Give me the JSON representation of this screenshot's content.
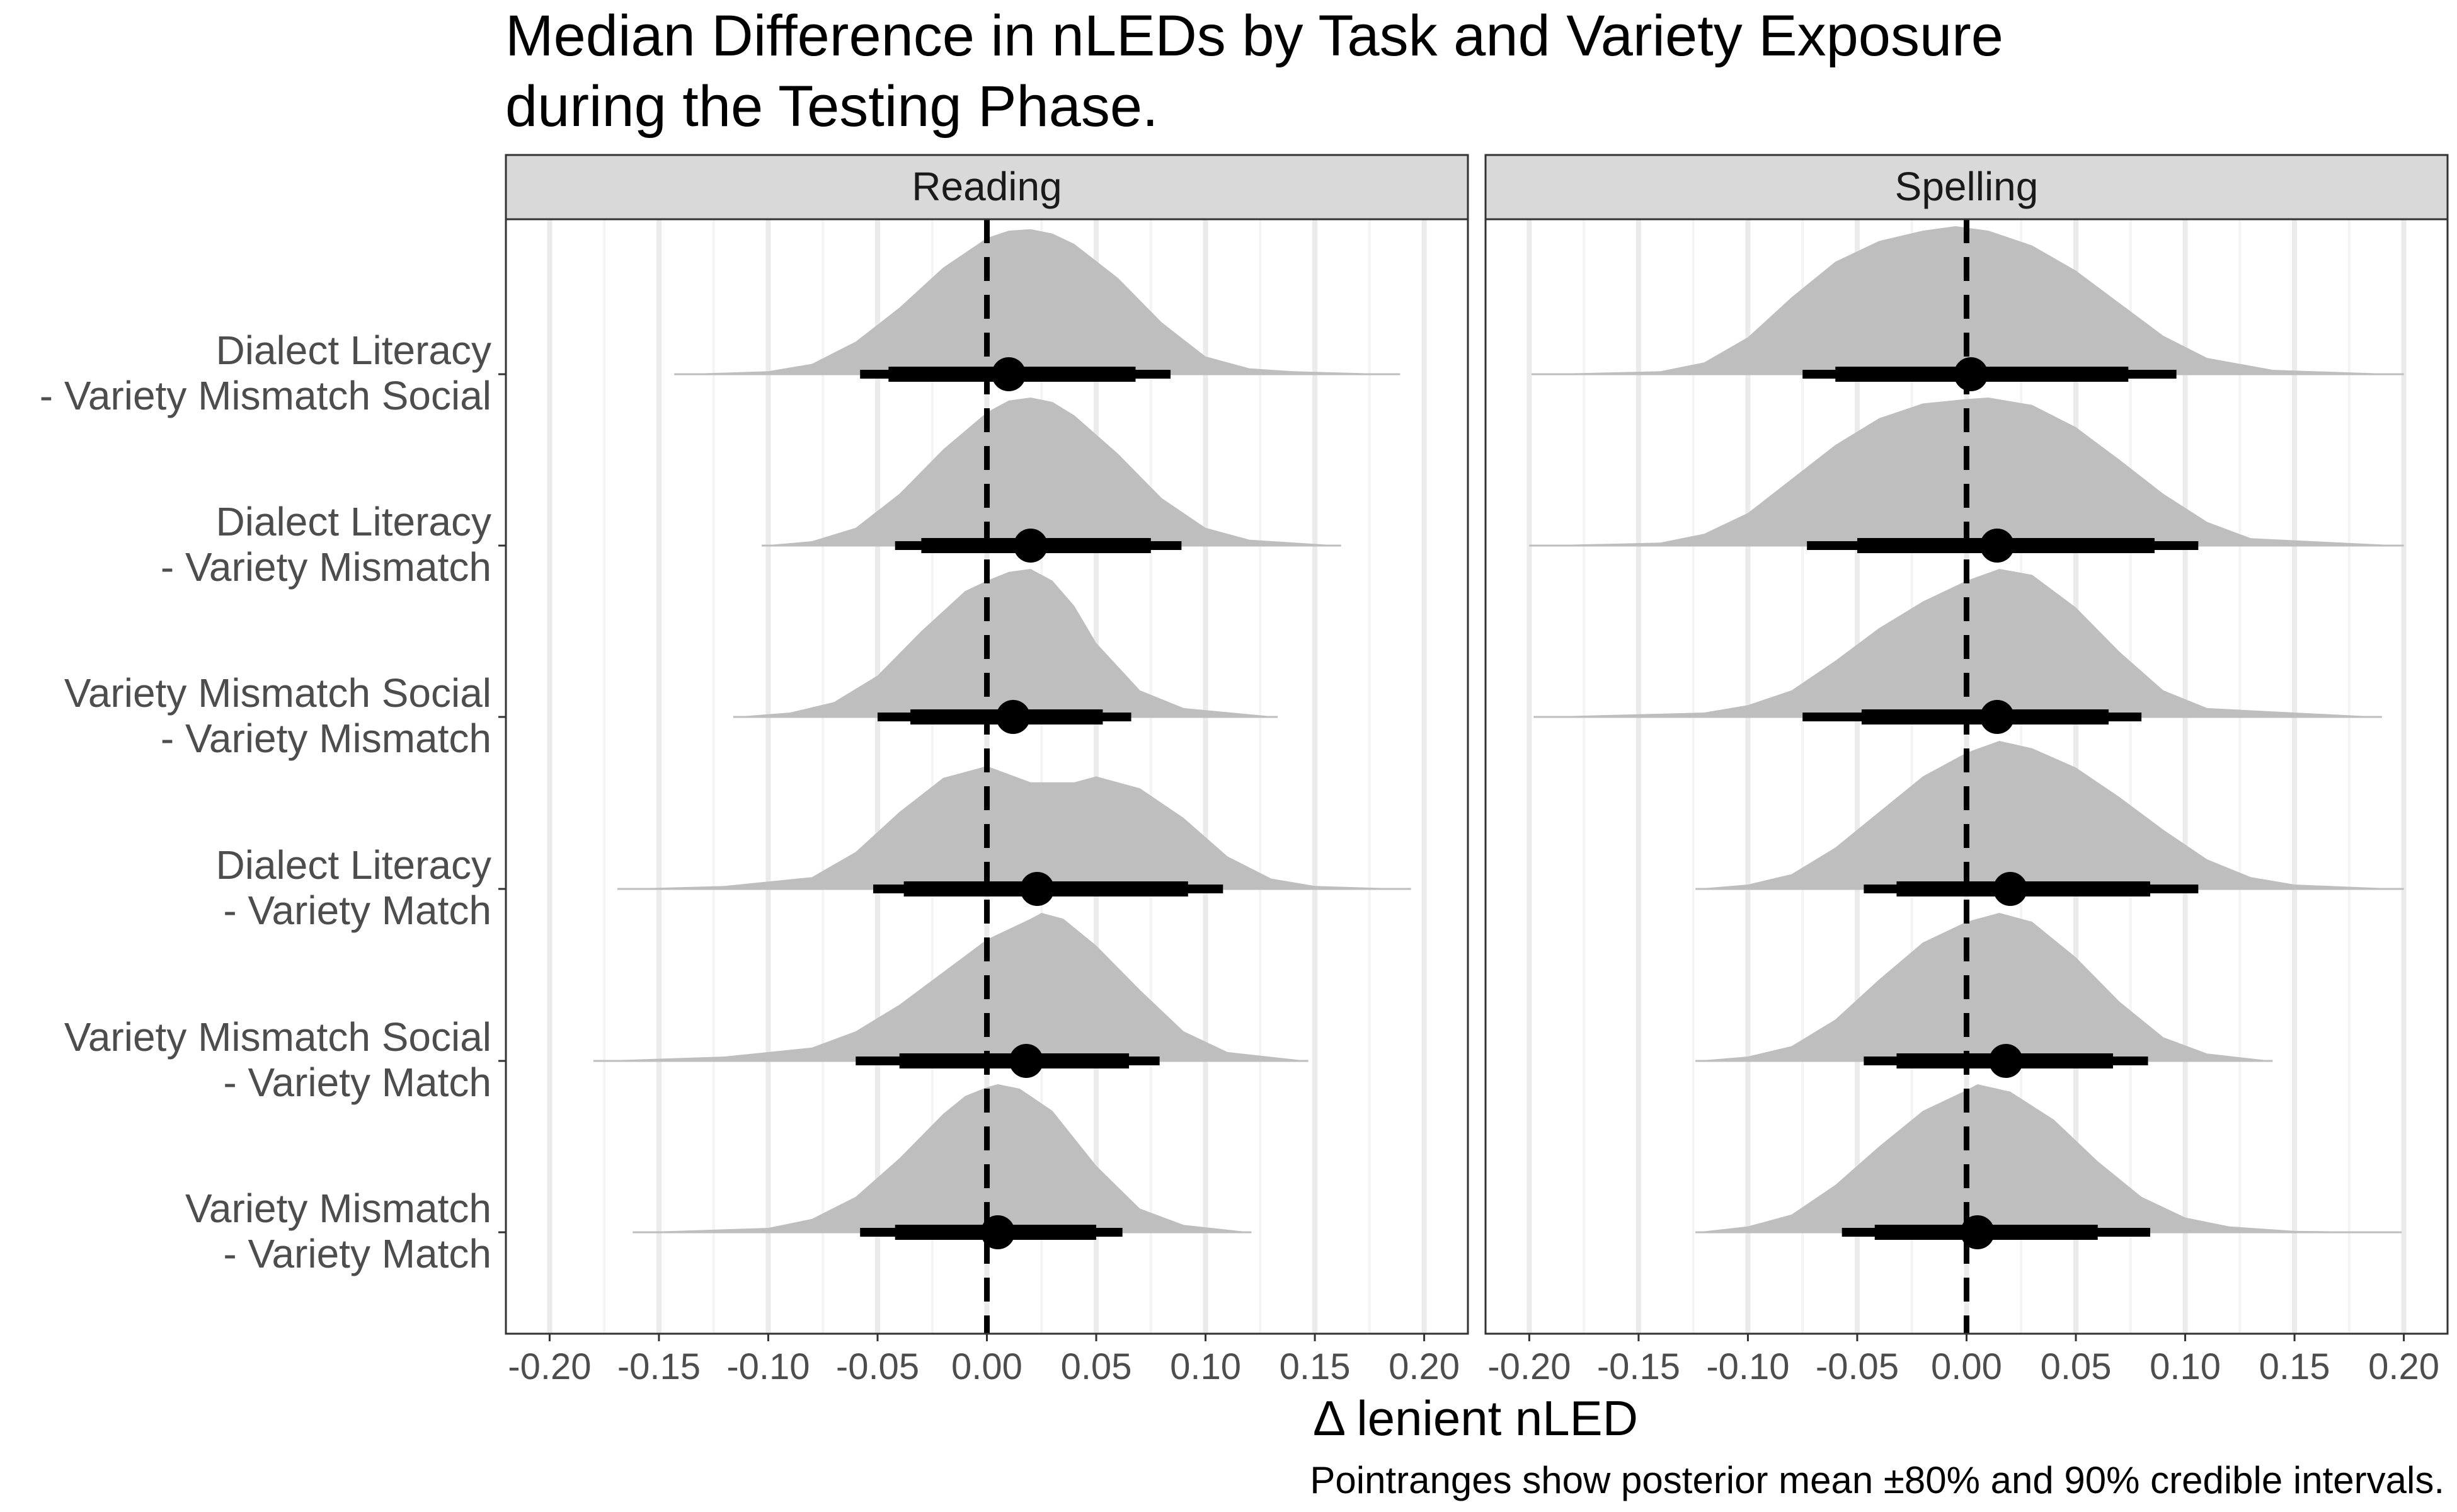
{
  "chart_data": {
    "type": "density",
    "title": "Median Difference in nLEDs by Task and Variety Exposure",
    "title_line2": "during the Testing Phase.",
    "xlabel": "Δ lenient nLED",
    "ylabel": "",
    "caption": "Pointranges show posterior mean ±80% and 90% credible intervals.",
    "xlim": [
      -0.22,
      0.22
    ],
    "x_ticks": [
      "-0.20",
      "-0.15",
      "-0.10",
      "-0.05",
      "0.00",
      "0.05",
      "0.10",
      "0.15",
      "0.20"
    ],
    "reference_line_x": 0.0,
    "grid": "vertical major and minor",
    "categories": [
      {
        "line1": "Dialect Literacy",
        "line2": "- Variety Mismatch Social"
      },
      {
        "line1": "Dialect Literacy",
        "line2": "- Variety Mismatch"
      },
      {
        "line1": "Variety Mismatch Social",
        "line2": "- Variety Mismatch"
      },
      {
        "line1": "Dialect Literacy",
        "line2": "- Variety Match"
      },
      {
        "line1": "Variety Mismatch Social",
        "line2": "- Variety Match"
      },
      {
        "line1": "Variety Mismatch",
        "line2": "- Variety Match"
      }
    ],
    "panels": [
      {
        "name": "Reading",
        "series": [
          {
            "mean": 0.01,
            "ci80": [
              -0.045,
              0.068
            ],
            "ci90": [
              -0.058,
              0.084
            ],
            "range": [
              -0.143,
              0.189
            ],
            "density": [
              [
                -0.143,
                0
              ],
              [
                -0.1,
                0.02
              ],
              [
                -0.08,
                0.07
              ],
              [
                -0.06,
                0.22
              ],
              [
                -0.04,
                0.45
              ],
              [
                -0.02,
                0.72
              ],
              [
                0.0,
                0.92
              ],
              [
                0.01,
                0.97
              ],
              [
                0.02,
                0.98
              ],
              [
                0.03,
                0.95
              ],
              [
                0.04,
                0.88
              ],
              [
                0.06,
                0.65
              ],
              [
                0.08,
                0.35
              ],
              [
                0.1,
                0.12
              ],
              [
                0.12,
                0.04
              ],
              [
                0.14,
                0.02
              ],
              [
                0.189,
                0
              ]
            ]
          },
          {
            "mean": 0.02,
            "ci80": [
              -0.03,
              0.075
            ],
            "ci90": [
              -0.042,
              0.089
            ],
            "range": [
              -0.103,
              0.162
            ],
            "density": [
              [
                -0.103,
                0
              ],
              [
                -0.08,
                0.03
              ],
              [
                -0.06,
                0.12
              ],
              [
                -0.04,
                0.35
              ],
              [
                -0.02,
                0.65
              ],
              [
                0.0,
                0.9
              ],
              [
                0.01,
                0.98
              ],
              [
                0.02,
                1.0
              ],
              [
                0.03,
                0.97
              ],
              [
                0.04,
                0.88
              ],
              [
                0.06,
                0.62
              ],
              [
                0.08,
                0.32
              ],
              [
                0.1,
                0.12
              ],
              [
                0.12,
                0.04
              ],
              [
                0.162,
                0
              ]
            ]
          },
          {
            "mean": 0.012,
            "ci80": [
              -0.035,
              0.053
            ],
            "ci90": [
              -0.05,
              0.066
            ],
            "range": [
              -0.116,
              0.133
            ],
            "density": [
              [
                -0.116,
                0
              ],
              [
                -0.09,
                0.03
              ],
              [
                -0.07,
                0.1
              ],
              [
                -0.05,
                0.28
              ],
              [
                -0.03,
                0.58
              ],
              [
                -0.01,
                0.85
              ],
              [
                0.0,
                0.92
              ],
              [
                0.01,
                0.98
              ],
              [
                0.02,
                1.0
              ],
              [
                0.03,
                0.92
              ],
              [
                0.04,
                0.75
              ],
              [
                0.05,
                0.5
              ],
              [
                0.07,
                0.18
              ],
              [
                0.09,
                0.06
              ],
              [
                0.133,
                0
              ]
            ]
          },
          {
            "mean": 0.023,
            "ci80": [
              -0.038,
              0.092
            ],
            "ci90": [
              -0.052,
              0.108
            ],
            "range": [
              -0.169,
              0.194
            ],
            "density": [
              [
                -0.169,
                0
              ],
              [
                -0.12,
                0.02
              ],
              [
                -0.08,
                0.08
              ],
              [
                -0.06,
                0.25
              ],
              [
                -0.04,
                0.52
              ],
              [
                -0.02,
                0.75
              ],
              [
                0.0,
                0.83
              ],
              [
                0.02,
                0.72
              ],
              [
                0.04,
                0.72
              ],
              [
                0.05,
                0.76
              ],
              [
                0.07,
                0.68
              ],
              [
                0.09,
                0.48
              ],
              [
                0.11,
                0.22
              ],
              [
                0.13,
                0.07
              ],
              [
                0.15,
                0.02
              ],
              [
                0.194,
                0
              ]
            ]
          },
          {
            "mean": 0.018,
            "ci80": [
              -0.04,
              0.065
            ],
            "ci90": [
              -0.06,
              0.079
            ],
            "range": [
              -0.18,
              0.147
            ],
            "density": [
              [
                -0.18,
                0
              ],
              [
                -0.12,
                0.03
              ],
              [
                -0.08,
                0.09
              ],
              [
                -0.06,
                0.2
              ],
              [
                -0.04,
                0.38
              ],
              [
                -0.02,
                0.6
              ],
              [
                0.0,
                0.82
              ],
              [
                0.02,
                0.96
              ],
              [
                0.025,
                1.0
              ],
              [
                0.035,
                0.96
              ],
              [
                0.05,
                0.78
              ],
              [
                0.07,
                0.48
              ],
              [
                0.09,
                0.2
              ],
              [
                0.11,
                0.06
              ],
              [
                0.147,
                0
              ]
            ]
          },
          {
            "mean": 0.005,
            "ci80": [
              -0.042,
              0.05
            ],
            "ci90": [
              -0.058,
              0.062
            ],
            "range": [
              -0.162,
              0.121
            ],
            "density": [
              [
                -0.162,
                0
              ],
              [
                -0.1,
                0.03
              ],
              [
                -0.08,
                0.09
              ],
              [
                -0.06,
                0.24
              ],
              [
                -0.04,
                0.5
              ],
              [
                -0.02,
                0.8
              ],
              [
                -0.01,
                0.92
              ],
              [
                0.0,
                0.98
              ],
              [
                0.005,
                1.0
              ],
              [
                0.015,
                0.97
              ],
              [
                0.03,
                0.82
              ],
              [
                0.05,
                0.45
              ],
              [
                0.07,
                0.16
              ],
              [
                0.09,
                0.05
              ],
              [
                0.121,
                0
              ]
            ]
          }
        ]
      },
      {
        "name": "Spelling",
        "series": [
          {
            "mean": 0.002,
            "ci80": [
              -0.06,
              0.074
            ],
            "ci90": [
              -0.075,
              0.096
            ],
            "range": [
              -0.199,
              0.2
            ],
            "density": [
              [
                -0.199,
                0
              ],
              [
                -0.14,
                0.02
              ],
              [
                -0.12,
                0.08
              ],
              [
                -0.1,
                0.25
              ],
              [
                -0.08,
                0.52
              ],
              [
                -0.06,
                0.76
              ],
              [
                -0.04,
                0.9
              ],
              [
                -0.02,
                0.97
              ],
              [
                -0.005,
                1.0
              ],
              [
                0.01,
                0.97
              ],
              [
                0.03,
                0.87
              ],
              [
                0.05,
                0.7
              ],
              [
                0.07,
                0.48
              ],
              [
                0.09,
                0.26
              ],
              [
                0.11,
                0.11
              ],
              [
                0.14,
                0.03
              ],
              [
                0.2,
                0
              ]
            ]
          },
          {
            "mean": 0.014,
            "ci80": [
              -0.05,
              0.086
            ],
            "ci90": [
              -0.073,
              0.106
            ],
            "range": [
              -0.2,
              0.2
            ],
            "density": [
              [
                -0.2,
                0
              ],
              [
                -0.14,
                0.02
              ],
              [
                -0.12,
                0.08
              ],
              [
                -0.1,
                0.22
              ],
              [
                -0.08,
                0.45
              ],
              [
                -0.06,
                0.68
              ],
              [
                -0.04,
                0.86
              ],
              [
                -0.02,
                0.96
              ],
              [
                0.0,
                0.99
              ],
              [
                0.01,
                1.0
              ],
              [
                0.03,
                0.95
              ],
              [
                0.05,
                0.8
              ],
              [
                0.07,
                0.58
              ],
              [
                0.09,
                0.35
              ],
              [
                0.11,
                0.16
              ],
              [
                0.13,
                0.05
              ],
              [
                0.2,
                0
              ]
            ]
          },
          {
            "mean": 0.014,
            "ci80": [
              -0.048,
              0.065
            ],
            "ci90": [
              -0.075,
              0.08
            ],
            "range": [
              -0.198,
              0.19
            ],
            "density": [
              [
                -0.198,
                0
              ],
              [
                -0.12,
                0.03
              ],
              [
                -0.1,
                0.08
              ],
              [
                -0.08,
                0.18
              ],
              [
                -0.06,
                0.38
              ],
              [
                -0.04,
                0.6
              ],
              [
                -0.02,
                0.78
              ],
              [
                0.0,
                0.92
              ],
              [
                0.015,
                1.0
              ],
              [
                0.03,
                0.96
              ],
              [
                0.05,
                0.74
              ],
              [
                0.07,
                0.44
              ],
              [
                0.09,
                0.18
              ],
              [
                0.11,
                0.06
              ],
              [
                0.19,
                0
              ]
            ]
          },
          {
            "mean": 0.02,
            "ci80": [
              -0.032,
              0.084
            ],
            "ci90": [
              -0.047,
              0.106
            ],
            "range": [
              -0.124,
              0.2
            ],
            "density": [
              [
                -0.124,
                0
              ],
              [
                -0.1,
                0.03
              ],
              [
                -0.08,
                0.1
              ],
              [
                -0.06,
                0.28
              ],
              [
                -0.04,
                0.52
              ],
              [
                -0.02,
                0.76
              ],
              [
                0.0,
                0.92
              ],
              [
                0.015,
                1.0
              ],
              [
                0.03,
                0.95
              ],
              [
                0.05,
                0.82
              ],
              [
                0.07,
                0.62
              ],
              [
                0.09,
                0.4
              ],
              [
                0.11,
                0.2
              ],
              [
                0.13,
                0.08
              ],
              [
                0.15,
                0.03
              ],
              [
                0.2,
                0
              ]
            ]
          },
          {
            "mean": 0.018,
            "ci80": [
              -0.032,
              0.067
            ],
            "ci90": [
              -0.047,
              0.083
            ],
            "range": [
              -0.124,
              0.14
            ],
            "density": [
              [
                -0.124,
                0
              ],
              [
                -0.1,
                0.03
              ],
              [
                -0.08,
                0.1
              ],
              [
                -0.06,
                0.28
              ],
              [
                -0.04,
                0.55
              ],
              [
                -0.02,
                0.8
              ],
              [
                0.0,
                0.94
              ],
              [
                0.015,
                1.0
              ],
              [
                0.03,
                0.94
              ],
              [
                0.05,
                0.7
              ],
              [
                0.07,
                0.4
              ],
              [
                0.09,
                0.16
              ],
              [
                0.11,
                0.05
              ],
              [
                0.14,
                0
              ]
            ]
          },
          {
            "mean": 0.005,
            "ci80": [
              -0.042,
              0.06
            ],
            "ci90": [
              -0.057,
              0.084
            ],
            "range": [
              -0.124,
              0.199
            ],
            "density": [
              [
                -0.124,
                0
              ],
              [
                -0.1,
                0.04
              ],
              [
                -0.08,
                0.12
              ],
              [
                -0.06,
                0.32
              ],
              [
                -0.04,
                0.58
              ],
              [
                -0.02,
                0.82
              ],
              [
                0.0,
                0.96
              ],
              [
                0.005,
                1.0
              ],
              [
                0.02,
                0.95
              ],
              [
                0.04,
                0.76
              ],
              [
                0.06,
                0.48
              ],
              [
                0.08,
                0.24
              ],
              [
                0.1,
                0.1
              ],
              [
                0.12,
                0.04
              ],
              [
                0.15,
                0.01
              ],
              [
                0.199,
                0
              ]
            ]
          }
        ]
      }
    ]
  }
}
